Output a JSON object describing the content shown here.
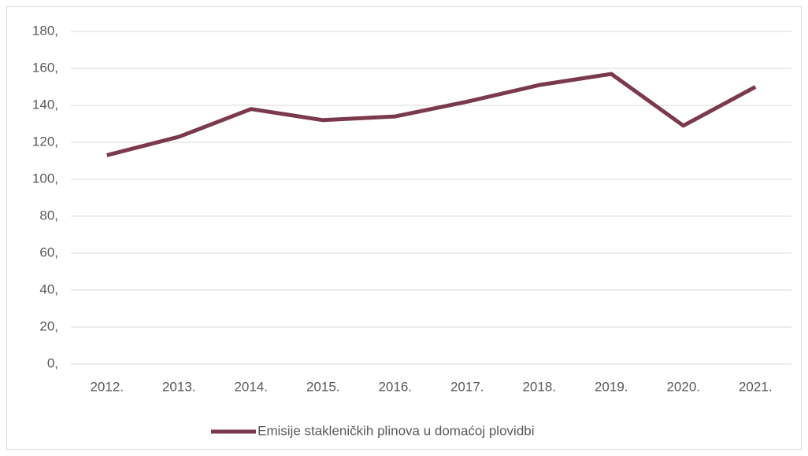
{
  "chart_data": {
    "type": "line",
    "categories": [
      "2012.",
      "2013.",
      "2014.",
      "2015.",
      "2016.",
      "2017.",
      "2018.",
      "2019.",
      "2020.",
      "2021."
    ],
    "series": [
      {
        "name": "Emisije stakleničkih plinova u domaćoj plovidbi",
        "color": "#7b3a4c",
        "values": [
          113,
          123,
          138,
          132,
          134,
          142,
          151,
          157,
          129,
          150
        ]
      }
    ],
    "ylim": [
      0,
      180
    ],
    "yticks": [
      {
        "value": 0,
        "label": "0,"
      },
      {
        "value": 20,
        "label": "20,"
      },
      {
        "value": 40,
        "label": "40,"
      },
      {
        "value": 60,
        "label": "60,"
      },
      {
        "value": 80,
        "label": "80,"
      },
      {
        "value": 100,
        "label": "100,"
      },
      {
        "value": 120,
        "label": "120,"
      },
      {
        "value": 140,
        "label": "140,"
      },
      {
        "value": 160,
        "label": "160,"
      },
      {
        "value": 180,
        "label": "180,"
      }
    ],
    "grid": true,
    "legend": "bottom"
  }
}
